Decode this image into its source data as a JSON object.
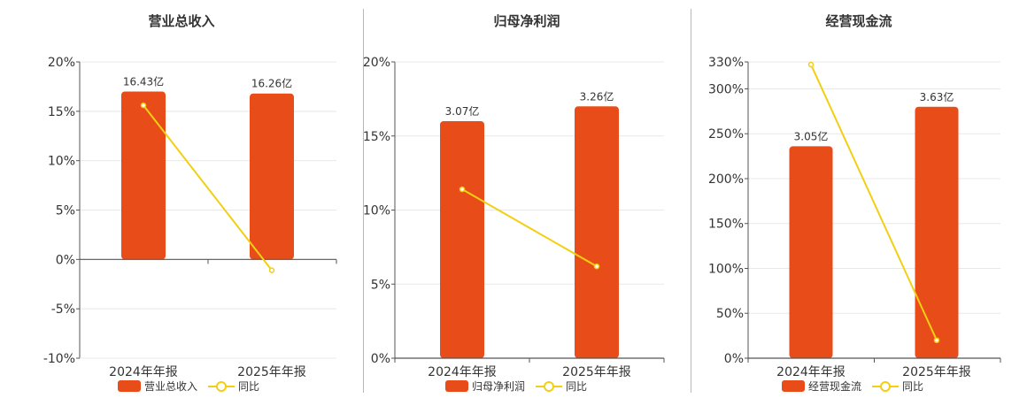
{
  "colors": {
    "bar": "#e84c19",
    "line": "#f2cf13",
    "grid": "#e8e8e8",
    "axis": "#555555"
  },
  "chart_data": [
    {
      "type": "bar",
      "title": "营业总收入",
      "categories": [
        "2024年年报",
        "2025年年报"
      ],
      "bar_series": {
        "name": "营业总收入",
        "bar_labels": [
          "16.43亿",
          "16.26亿"
        ]
      },
      "line_series": {
        "name": "同比",
        "values": [
          15.6,
          -1.1
        ]
      },
      "y_axis": {
        "min": -10,
        "max": 20,
        "ticks": [
          20,
          15,
          10,
          5,
          0,
          -5,
          -10
        ],
        "tick_labels": [
          "20%",
          "15%",
          "10%",
          "5%",
          "0%",
          "-5%",
          "-10%"
        ]
      },
      "bar_values_on_axis_scale": [
        17,
        16.8
      ],
      "legend": [
        "营业总收入",
        "同比"
      ],
      "legend_position": "bottom",
      "grid": true
    },
    {
      "type": "bar",
      "title": "归母净利润",
      "categories": [
        "2024年年报",
        "2025年年报"
      ],
      "bar_series": {
        "name": "归母净利润",
        "bar_labels": [
          "3.07亿",
          "3.26亿"
        ]
      },
      "line_series": {
        "name": "同比",
        "values": [
          11.4,
          6.2
        ]
      },
      "y_axis": {
        "min": 0,
        "max": 20,
        "ticks": [
          20,
          15,
          10,
          5,
          0
        ],
        "tick_labels": [
          "20%",
          "15%",
          "10%",
          "5%",
          "0%"
        ]
      },
      "bar_values_on_axis_scale": [
        16,
        17
      ],
      "legend": [
        "归母净利润",
        "同比"
      ],
      "legend_position": "bottom",
      "grid": true
    },
    {
      "type": "bar",
      "title": "经营现金流",
      "categories": [
        "2024年年报",
        "2025年年报"
      ],
      "bar_series": {
        "name": "经营现金流",
        "bar_labels": [
          "3.05亿",
          "3.63亿"
        ]
      },
      "line_series": {
        "name": "同比",
        "values": [
          327,
          20
        ]
      },
      "y_axis": {
        "min": 0,
        "max": 330,
        "ticks": [
          330,
          300,
          250,
          200,
          150,
          100,
          50,
          0
        ],
        "tick_labels": [
          "330%",
          "300%",
          "250%",
          "200%",
          "150%",
          "100%",
          "50%",
          "0%"
        ]
      },
      "bar_values_on_axis_scale": [
        236,
        280
      ],
      "legend": [
        "经营现金流",
        "同比"
      ],
      "legend_position": "bottom",
      "grid": true
    }
  ]
}
